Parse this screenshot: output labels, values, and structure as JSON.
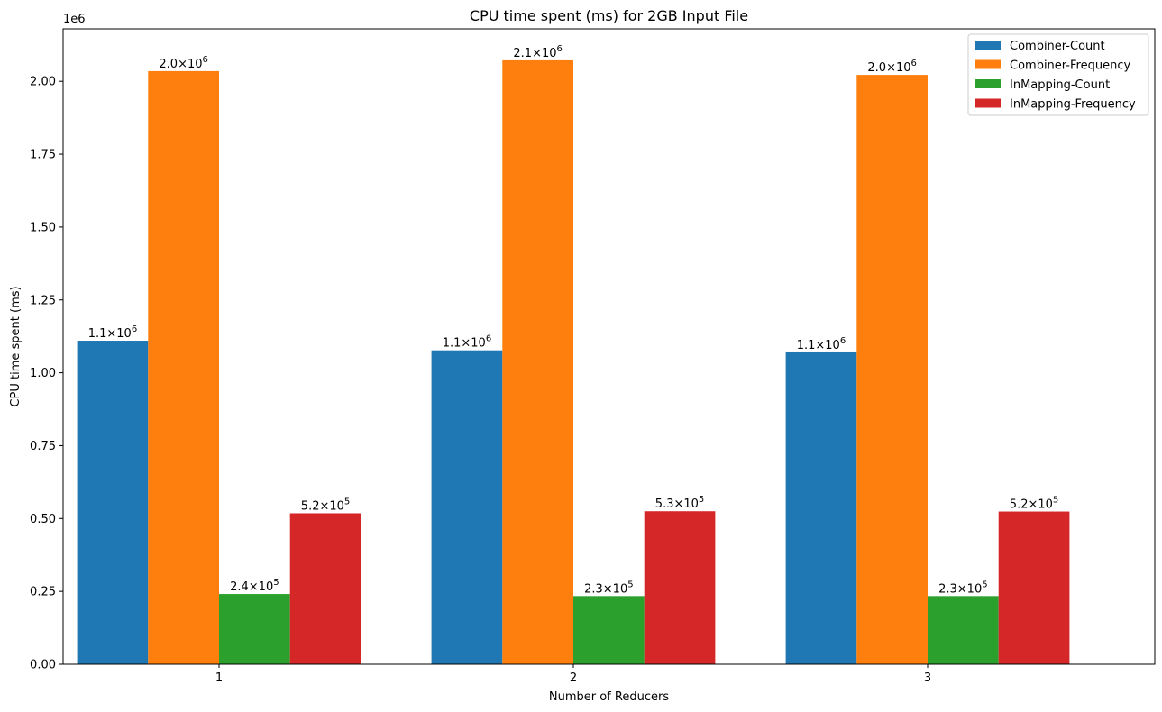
{
  "chart_data": {
    "type": "bar",
    "title": "CPU time spent (ms) for 2GB Input File",
    "xlabel": "Number of Reducers",
    "ylabel": "CPU time spent (ms)",
    "y_offset_text": "1e6",
    "ylim": [
      0,
      2180000
    ],
    "yticks": [
      0,
      250000,
      500000,
      750000,
      1000000,
      1250000,
      1500000,
      1750000,
      2000000
    ],
    "ytick_labels": [
      "0.00",
      "0.25",
      "0.50",
      "0.75",
      "1.00",
      "1.25",
      "1.50",
      "1.75",
      "2.00"
    ],
    "categories": [
      "1",
      "2",
      "3"
    ],
    "grid": false,
    "legend_position": "top-right",
    "series": [
      {
        "name": "Combiner-Count",
        "color": "#1f77b4",
        "values": [
          1110000,
          1077000,
          1070000
        ],
        "labels": [
          {
            "m": "1.1",
            "e": "6"
          },
          {
            "m": "1.1",
            "e": "6"
          },
          {
            "m": "1.1",
            "e": "6"
          }
        ]
      },
      {
        "name": "Combiner-Frequency",
        "color": "#ff7f0e",
        "values": [
          2035000,
          2072000,
          2022000
        ],
        "labels": [
          {
            "m": "2.0",
            "e": "6"
          },
          {
            "m": "2.1",
            "e": "6"
          },
          {
            "m": "2.0",
            "e": "6"
          }
        ]
      },
      {
        "name": "InMapping-Count",
        "color": "#2ca02c",
        "values": [
          241000,
          234000,
          234000
        ],
        "labels": [
          {
            "m": "2.4",
            "e": "5"
          },
          {
            "m": "2.3",
            "e": "5"
          },
          {
            "m": "2.3",
            "e": "5"
          }
        ]
      },
      {
        "name": "InMapping-Frequency",
        "color": "#d62728",
        "values": [
          518000,
          525000,
          524000
        ],
        "labels": [
          {
            "m": "5.2",
            "e": "5"
          },
          {
            "m": "5.3",
            "e": "5"
          },
          {
            "m": "5.2",
            "e": "5"
          }
        ]
      }
    ]
  }
}
